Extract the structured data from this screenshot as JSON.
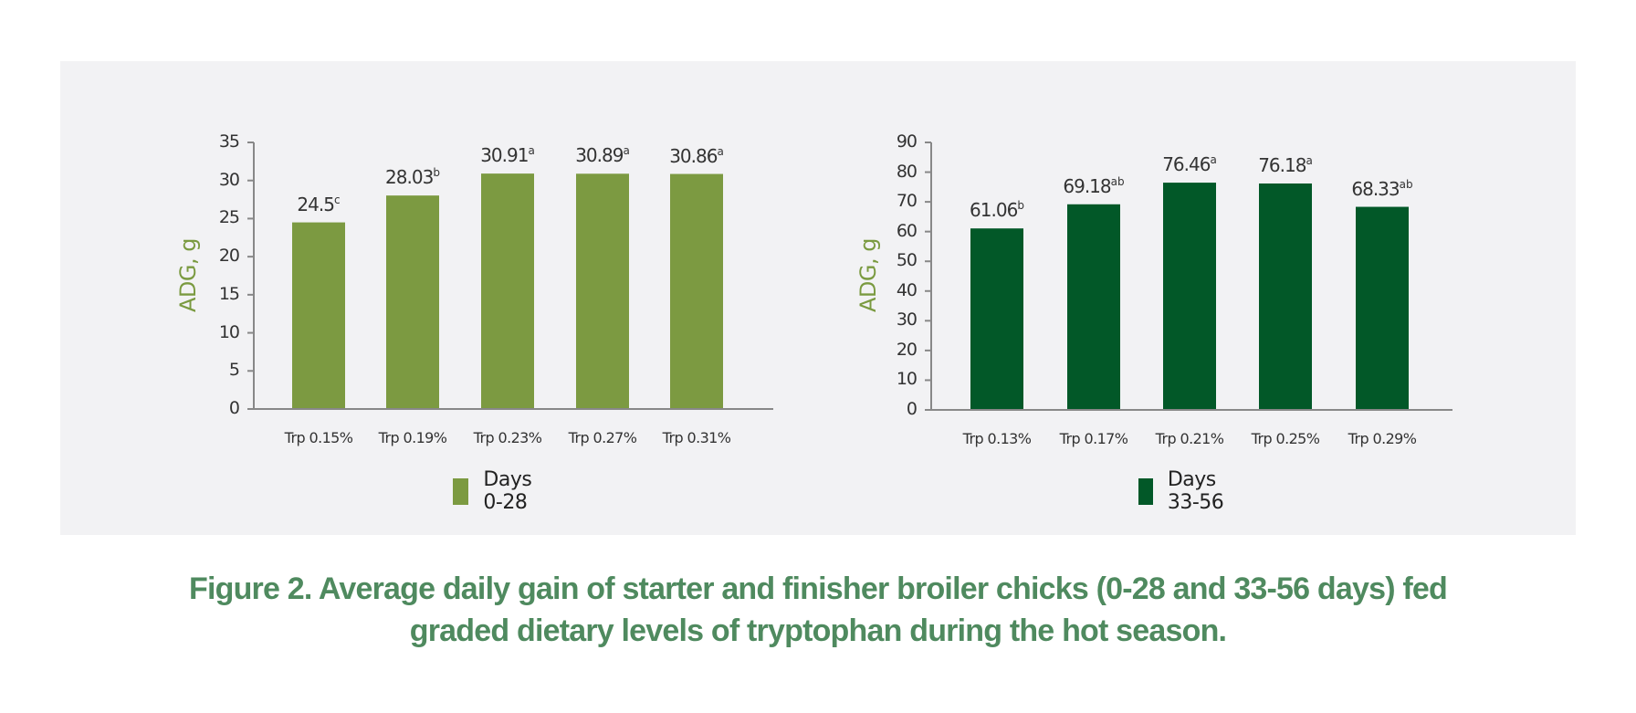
{
  "figure": {
    "caption_line1": "Figure 2. Average daily gain of starter and finisher broiler chicks (0-28 and 33-56 days) fed",
    "caption_line2": "graded dietary levels of tryptophan during the hot season."
  },
  "colors": {
    "panel_background": "#f2f2f4",
    "starter_bar": "#7c9a41",
    "finisher_bar": "#025828",
    "axis": "#888888",
    "ylabel": "#7a9a40",
    "caption": "#4f8a5f"
  },
  "chart_data": [
    {
      "type": "bar",
      "title": "",
      "xlabel": "",
      "ylabel": "ADG, g",
      "ylim": [
        0,
        35
      ],
      "yticks": [
        0,
        5,
        10,
        15,
        20,
        25,
        30,
        35
      ],
      "grid": false,
      "legend_position": "bottom",
      "categories": [
        "Trp 0.15%",
        "Trp 0.19%",
        "Trp 0.23%",
        "Trp 0.27%",
        "Trp 0.31%"
      ],
      "series": [
        {
          "name": "Days 0-28",
          "color": "#7c9a41",
          "values": [
            24.5,
            28.03,
            30.91,
            30.89,
            30.86
          ],
          "labels": [
            "24.5",
            "28.03",
            "30.91",
            "30.89",
            "30.86"
          ],
          "superscripts": [
            "c",
            "b",
            "a",
            "a",
            "a"
          ]
        }
      ]
    },
    {
      "type": "bar",
      "title": "",
      "xlabel": "",
      "ylabel": "ADG, g",
      "ylim": [
        0,
        90
      ],
      "yticks": [
        0,
        10,
        20,
        30,
        40,
        50,
        60,
        70,
        80,
        90
      ],
      "grid": false,
      "legend_position": "bottom",
      "categories": [
        "Trp 0.13%",
        "Trp 0.17%",
        "Trp 0.21%",
        "Trp 0.25%",
        "Trp 0.29%"
      ],
      "series": [
        {
          "name": "Days 33-56",
          "color": "#025828",
          "values": [
            61.06,
            69.18,
            76.46,
            76.18,
            68.33
          ],
          "labels": [
            "61.06",
            "69.18",
            "76.46",
            "76.18",
            "68.33"
          ],
          "superscripts": [
            "b",
            "ab",
            "a",
            "a",
            "ab"
          ]
        }
      ]
    }
  ]
}
